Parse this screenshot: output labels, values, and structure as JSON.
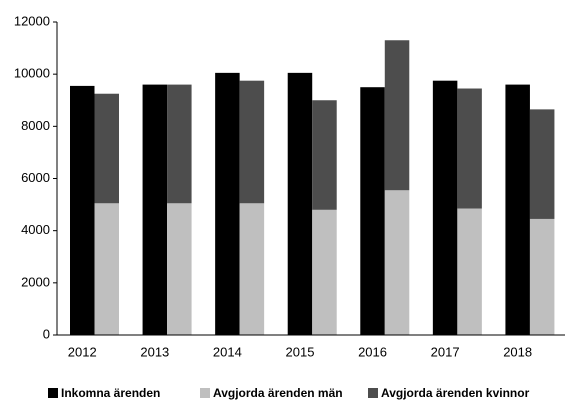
{
  "chart_data": {
    "type": "bar",
    "categories": [
      "2012",
      "2013",
      "2014",
      "2015",
      "2016",
      "2017",
      "2018"
    ],
    "series": [
      {
        "name": "Inkomna ärenden",
        "color": "#000000",
        "stack": "a",
        "values": [
          9550,
          9600,
          10050,
          10050,
          9500,
          9750,
          9600
        ]
      },
      {
        "name": "Avgjorda ärenden män",
        "color": "#bfbfbf",
        "stack": "b",
        "values": [
          5050,
          5050,
          5050,
          4800,
          5550,
          4850,
          4450
        ]
      },
      {
        "name": "Avgjorda ärenden kvinnor",
        "color": "#4d4d4d",
        "stack": "b",
        "values": [
          4200,
          4550,
          4700,
          4200,
          5750,
          4600,
          4200
        ]
      }
    ],
    "ylim": [
      0,
      12000
    ],
    "yticks": [
      0,
      2000,
      4000,
      6000,
      8000,
      10000,
      12000
    ],
    "grid": false,
    "legend": "bottom"
  }
}
